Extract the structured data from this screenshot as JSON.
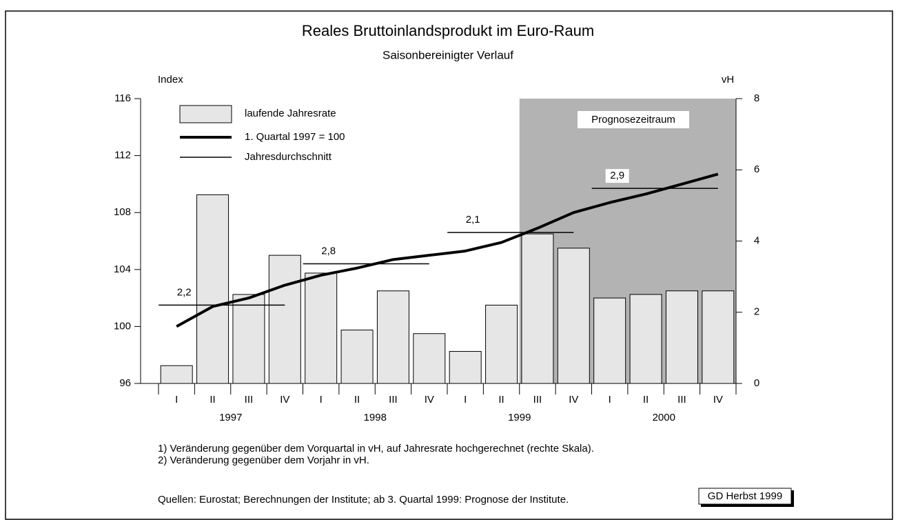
{
  "chart_data": {
    "type": "bar_line",
    "title": "Reales Bruttoinlandsprodukt im Euro-Raum",
    "subtitle": "Saisonbereinigter Verlauf",
    "y_label": "Index",
    "y2_label": "vH",
    "categories": [
      "I",
      "II",
      "III",
      "IV",
      "I",
      "II",
      "III",
      "IV",
      "I",
      "II",
      "III",
      "IV",
      "I",
      "II",
      "III",
      "IV"
    ],
    "years": [
      "1997",
      "1998",
      "1999",
      "2000"
    ],
    "ylim": [
      96,
      116
    ],
    "yticks": [
      96,
      100,
      104,
      108,
      112,
      116
    ],
    "y2lim": [
      0,
      8
    ],
    "y2ticks": [
      0,
      2,
      4,
      6,
      8
    ],
    "series": [
      {
        "name": "laufende Jahresrate",
        "color": "#e6e6e6",
        "axis": "y2",
        "values": [
          0.5,
          5.3,
          2.5,
          3.6,
          3.1,
          1.5,
          2.6,
          1.4,
          0.9,
          2.2,
          4.2,
          3.8,
          2.4,
          2.5,
          2.6,
          2.6
        ]
      },
      {
        "name": "1. Quartal 1997 = 100",
        "color": "#000000",
        "values": [
          100.0,
          101.4,
          102.0,
          102.9,
          103.6,
          104.1,
          104.7,
          105.0,
          105.3,
          105.9,
          106.9,
          108.0,
          108.7,
          109.3,
          110.0,
          110.7
        ]
      }
    ],
    "annual": {
      "name": "Jahresdurchschnitt",
      "values": [
        101.5,
        104.4,
        106.6,
        109.7
      ],
      "rates": [
        2.2,
        2.8,
        2.1,
        2.9
      ],
      "rate_labels": [
        "2,2",
        "2,8",
        "2,1",
        "2,9"
      ]
    },
    "forecast": {
      "label": "Prognosezeitraum",
      "color": "#b3b3b3"
    },
    "notes": [
      "1) Veränderung gegenüber dem Vorquartal in vH, auf Jahresrate hochgerechnet (rechte Skala).",
      "2) Veränderung gegenüber dem Vorjahr in vH."
    ],
    "source": "Quellen: Eurostat; Berechnungen der Institute; ab 3. Quartal 1999: Prognose der Institute.",
    "badge": "GD Herbst 1999"
  }
}
